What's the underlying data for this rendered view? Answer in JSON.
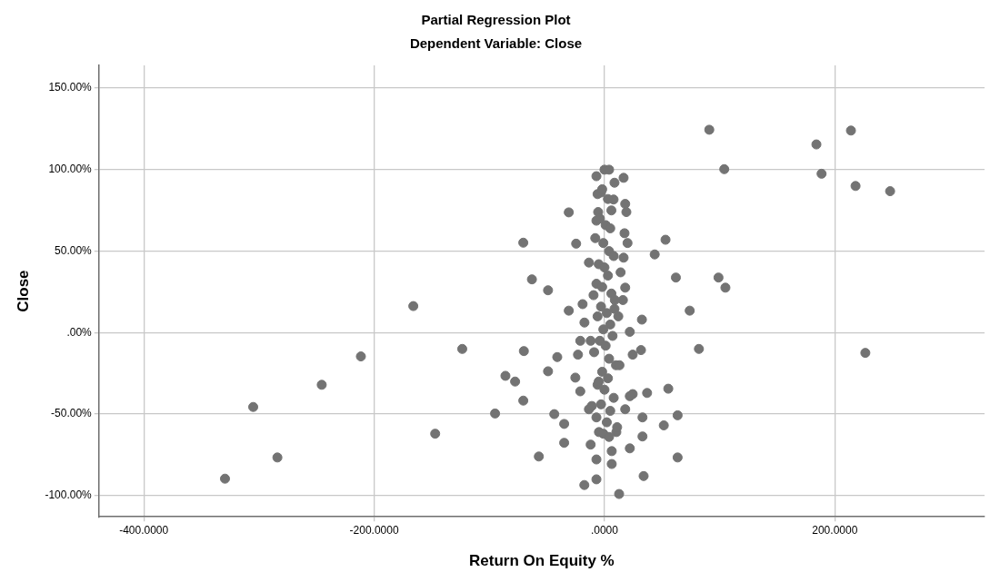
{
  "chart_data": {
    "type": "scatter",
    "title": "Partial Regression Plot",
    "subtitle": "Dependent Variable: Close",
    "xlabel": "Return On Equity %",
    "ylabel": "Close",
    "xlim": [
      -439,
      330
    ],
    "ylim": [
      -113,
      164
    ],
    "xticks": [
      {
        "value": -400,
        "label": "-400.0000"
      },
      {
        "value": -200,
        "label": "-200.0000"
      },
      {
        "value": 0,
        "label": ".0000"
      },
      {
        "value": 200,
        "label": "200.0000"
      }
    ],
    "yticks": [
      {
        "value": -100,
        "label": "-100.00%"
      },
      {
        "value": -50,
        "label": "-50.00%"
      },
      {
        "value": 0,
        "label": ".00%"
      },
      {
        "value": 50,
        "label": "50.00%"
      },
      {
        "value": 100,
        "label": "100.00%"
      },
      {
        "value": 150,
        "label": "150.00%"
      }
    ],
    "grid": true,
    "marker": "circle",
    "legend": false,
    "series": [
      {
        "color": "#737373",
        "x": [
          -329.5,
          -305,
          -284,
          -245.5,
          -211.5,
          -166,
          -147,
          -123.5,
          -95,
          -70.5,
          -70,
          -70.5,
          -86,
          -77.6,
          -63,
          -49,
          -49,
          -57,
          -43.6,
          -41,
          -35,
          -35,
          -31,
          -24.6,
          -31,
          91,
          104,
          184,
          188.5,
          214,
          218,
          248,
          226.5,
          105,
          99,
          62,
          53,
          43.6,
          74,
          82,
          63.5,
          55.4,
          63.5,
          51.5,
          34,
          32.5,
          37,
          33,
          33,
          24.5,
          12.7,
          -7,
          -17.5,
          6.3,
          -7,
          -12,
          6.3,
          22,
          0,
          4,
          -7,
          16.6,
          8.7,
          7.9,
          18,
          19,
          -5.5,
          -3,
          -7,
          17.4,
          20,
          16.6,
          -13.5,
          -9.5,
          -19,
          8.7,
          18,
          16,
          22,
          24.5,
          31.7,
          14,
          -17.4,
          -21,
          -23,
          -25.3,
          -21,
          -13.5,
          -4.8,
          10.3,
          18,
          22,
          -6,
          -2,
          3,
          6,
          -4,
          1,
          5,
          -8,
          -1,
          4,
          8,
          -5,
          0,
          3,
          -7,
          -2,
          6,
          9,
          -3,
          2,
          -6,
          5,
          -1,
          7,
          -4,
          1,
          -9,
          4,
          10,
          -2,
          3,
          -6,
          0,
          8,
          -3,
          5,
          -7,
          2,
          11,
          -1,
          4,
          -5,
          13,
          -11,
          12,
          -12
        ],
        "values": [
          -89.6,
          -45.6,
          -76.6,
          -32,
          -14.6,
          16.3,
          -62,
          -10,
          -49.6,
          55.2,
          -11.3,
          -41.7,
          -26.5,
          -30,
          32.7,
          26,
          -23.7,
          -76,
          -50,
          -15,
          -56,
          -67.6,
          73.8,
          54.6,
          13.5,
          124.5,
          100.3,
          115.5,
          97.5,
          124,
          90,
          86.8,
          -12.4,
          27.6,
          33.8,
          33.8,
          57,
          48,
          13.5,
          -10,
          -76.6,
          -34.4,
          -50.7,
          -56.9,
          -88,
          8,
          -37,
          -52,
          -63.7,
          -37.7,
          -99,
          -90,
          -93.5,
          -80.6,
          -77.8,
          -68.7,
          -72.7,
          -71,
          100,
          100,
          96,
          95,
          92,
          81.7,
          79,
          74,
          74,
          86,
          68.7,
          61,
          55,
          46,
          43,
          23,
          17.5,
          14.6,
          27.6,
          20,
          0.5,
          -13.5,
          -10.7,
          37,
          6.2,
          -5,
          -13.5,
          -27.6,
          -36,
          -47,
          -61,
          -61,
          -47,
          -39,
          85,
          88,
          82,
          75,
          70,
          66,
          64,
          58,
          55,
          50,
          47,
          42,
          40,
          35,
          30,
          28,
          24,
          20,
          16,
          12,
          10,
          5,
          2,
          -2,
          -5,
          -8,
          -12,
          -16,
          -20,
          -24,
          -28,
          -32,
          -35,
          -40,
          -44,
          -48,
          -52,
          -55,
          -58,
          -62,
          -64,
          -30,
          -20,
          -45,
          10,
          -5
        ]
      }
    ]
  }
}
